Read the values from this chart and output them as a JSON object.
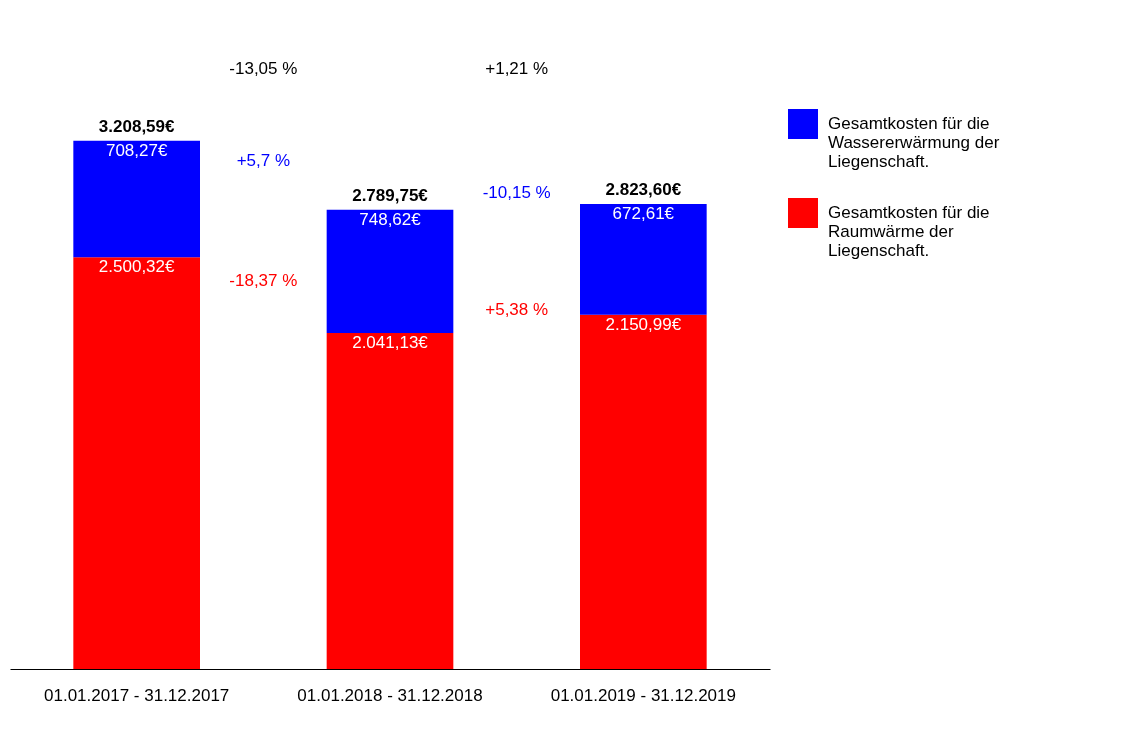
{
  "chart_data": {
    "type": "bar",
    "stacked": true,
    "categories": [
      "01.01.2017 -\n31.12.2017",
      "01.01.2018 -\n31.12.2018",
      "01.01.2019 -\n31.12.2019"
    ],
    "series": [
      {
        "name": "Gesamtkosten für die Raumwärme der Liegenschaft.",
        "color": "#ff0000",
        "values": [
          2500.32,
          2041.13,
          2150.99
        ],
        "value_labels": [
          "2.500,32€",
          "2.041,13€",
          "2.150,99€"
        ]
      },
      {
        "name": "Gesamtkosten für die Wassererwärmung der Liegenschaft.",
        "color": "#0000ff",
        "values": [
          708.27,
          748.62,
          672.61
        ],
        "value_labels": [
          "708,27€",
          "748,62€",
          "672,61€"
        ]
      }
    ],
    "totals": [
      "3.208,59€",
      "2.789,75€",
      "2.823,60€"
    ],
    "annotations": [
      "-13,05 %",
      "+1,21 %",
      "+5,7 %",
      "-10,15 %",
      "-18,37 %",
      "+5,38 %"
    ],
    "legend": "right",
    "grid": false
  }
}
